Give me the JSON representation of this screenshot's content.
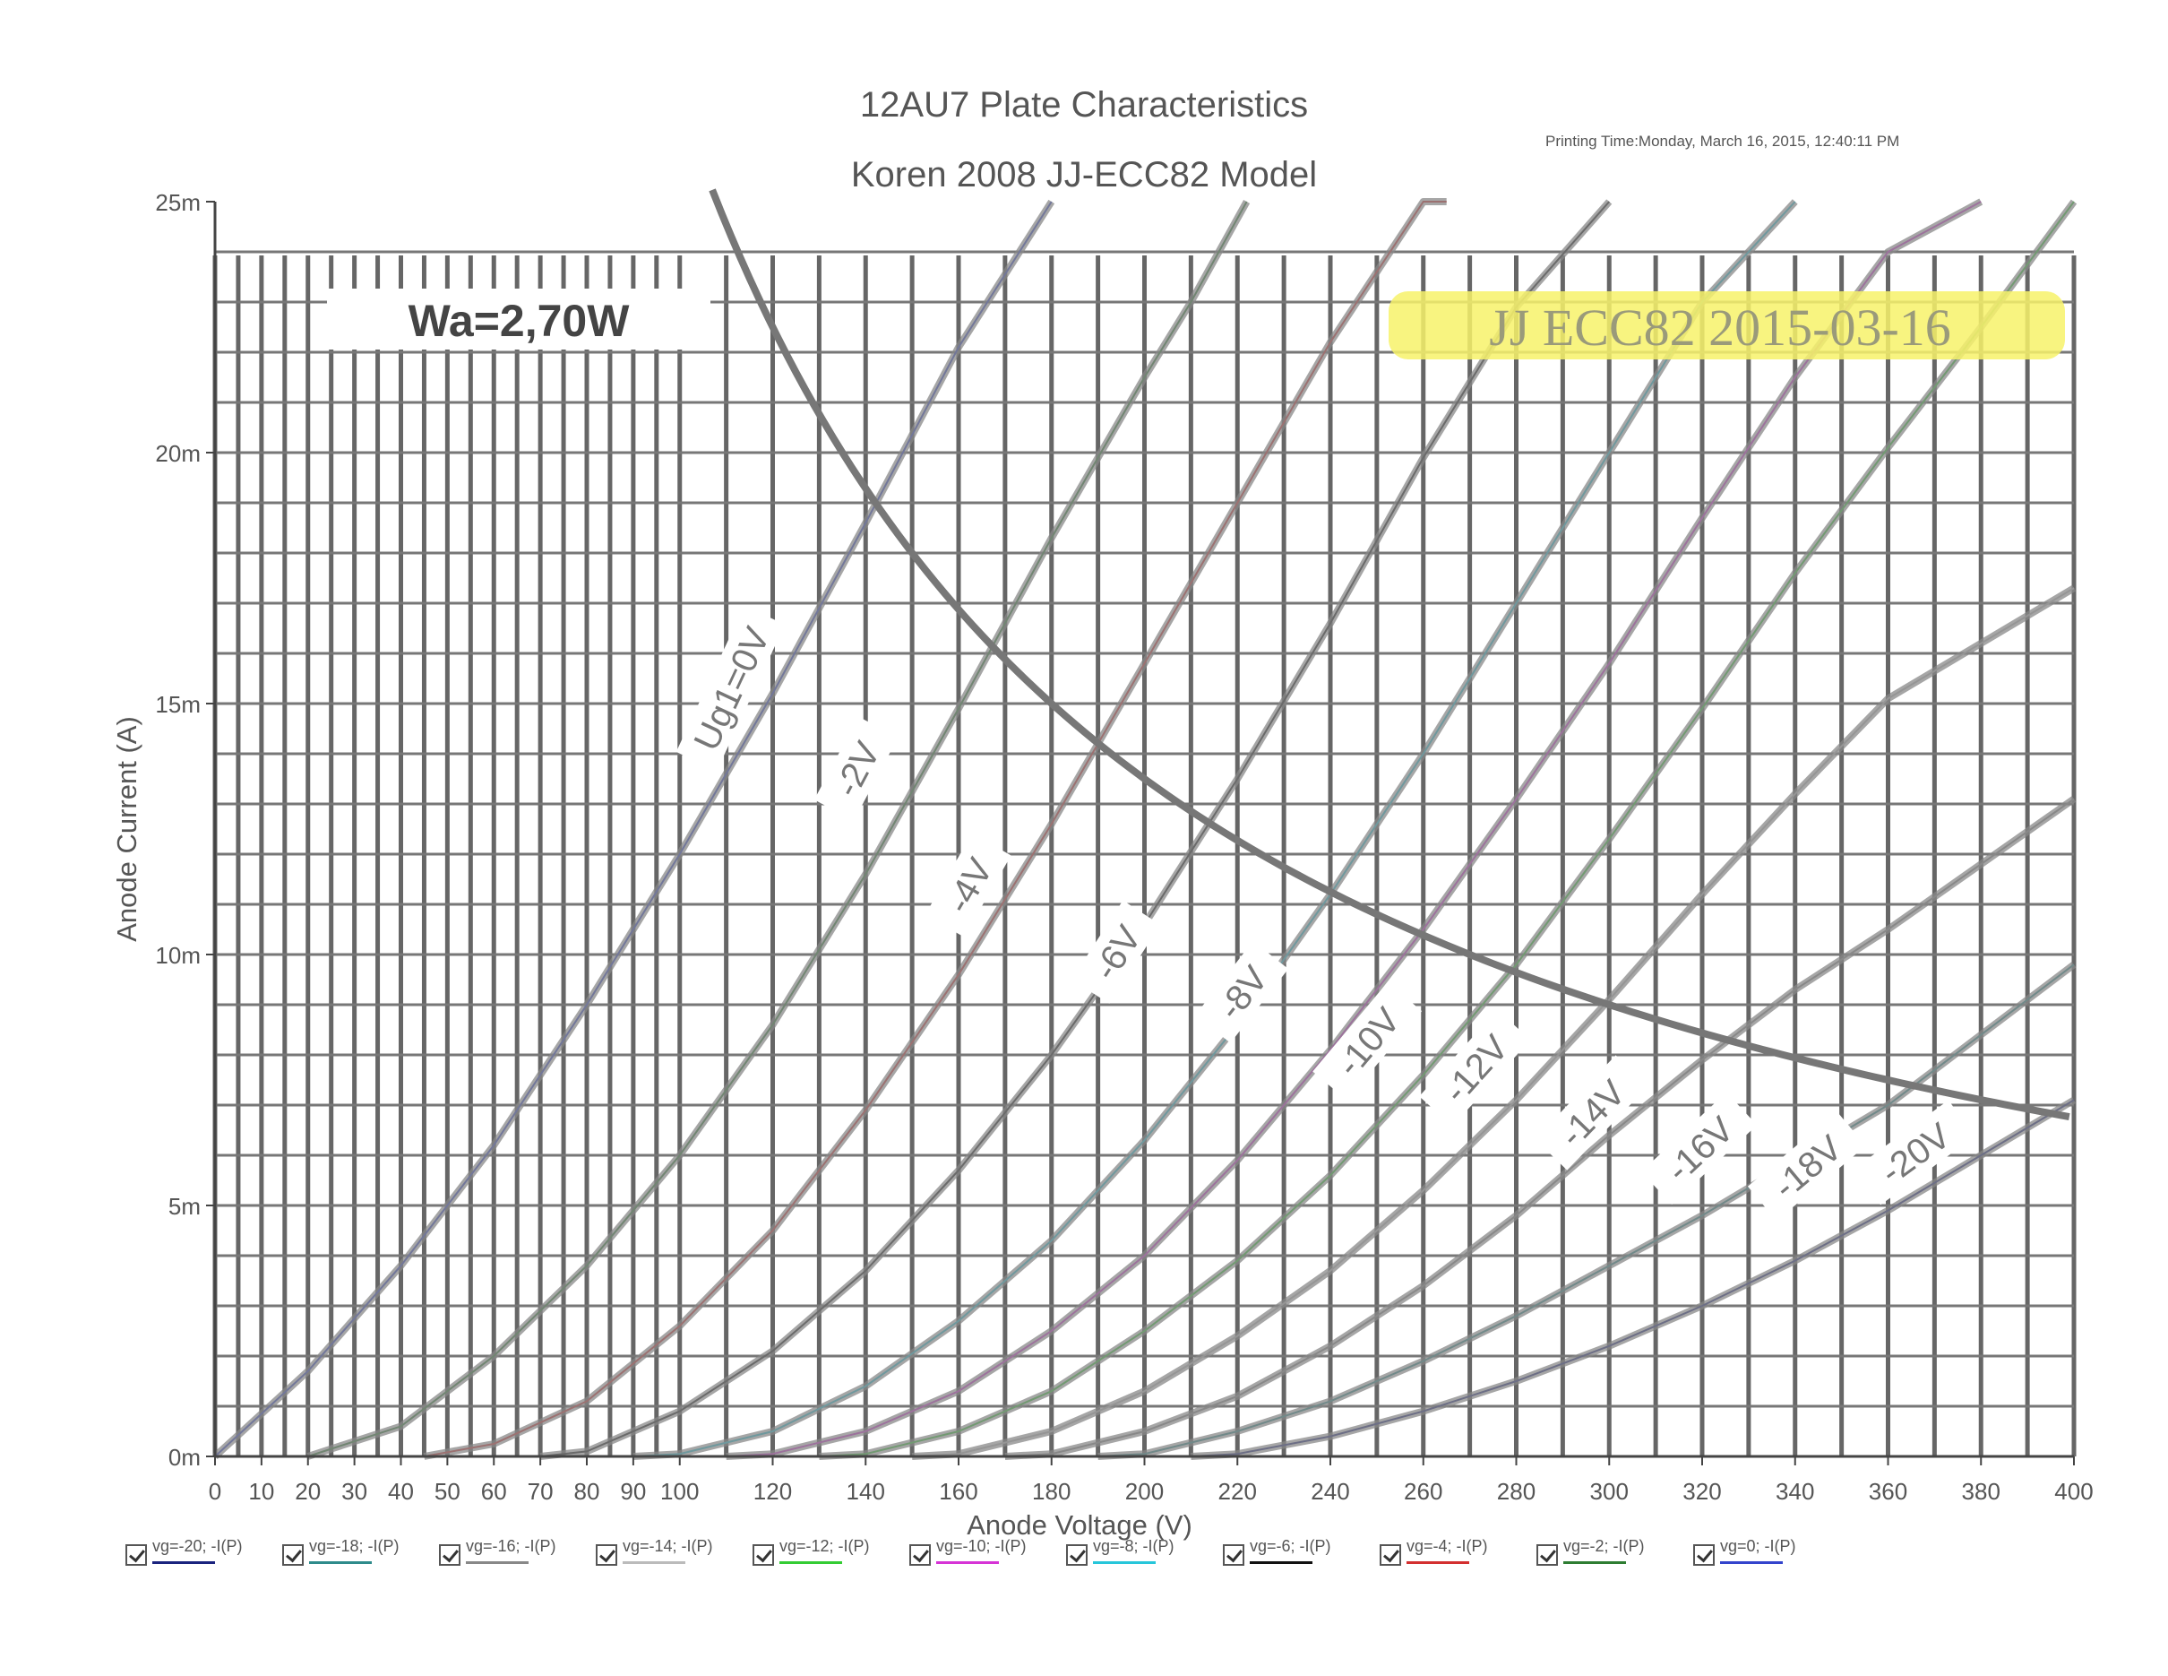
{
  "chart_data": {
    "type": "line",
    "title": "12AU7 Plate Characteristics",
    "subtitle": "Koren 2008 JJ-ECC82 Model",
    "printing_time": "Printing Time:Monday, March 16, 2015, 12:40:11 PM",
    "xlabel": "Anode Voltage (V)",
    "ylabel": "Anode Current (A)",
    "xlim": [
      0,
      400
    ],
    "ylim": [
      0,
      25
    ],
    "x_ticks": [
      "0",
      "10",
      "20",
      "30",
      "40",
      "50",
      "60",
      "70",
      "80",
      "90",
      "100",
      "120",
      "140",
      "160",
      "180",
      "200",
      "220",
      "240",
      "260",
      "280",
      "300",
      "320",
      "340",
      "360",
      "380",
      "400"
    ],
    "x_tick_values": [
      0,
      10,
      20,
      30,
      40,
      50,
      60,
      70,
      80,
      90,
      100,
      120,
      140,
      160,
      180,
      200,
      220,
      240,
      260,
      280,
      300,
      320,
      340,
      360,
      380,
      400
    ],
    "y_ticks": [
      "0m",
      "5m",
      "10m",
      "15m",
      "20m",
      "25m"
    ],
    "y_tick_values": [
      0,
      5,
      10,
      15,
      20,
      25
    ],
    "grid": true,
    "power_label": "Wa=2,70W",
    "power_watts": 2.7,
    "stamp": "JJ ECC82 2015-03-16",
    "curve_labels": [
      "Ug1=0V",
      "-2V",
      "-4V",
      "-6V",
      "-8V",
      "-10V",
      "-12V",
      "-14V",
      "-16V",
      "-18V",
      "-20V"
    ],
    "series": [
      {
        "name": "vg=0; -I(P)",
        "color": "#3344cc",
        "x": [
          0,
          20,
          40,
          60,
          80,
          100,
          120,
          140,
          160,
          180
        ],
        "y": [
          0,
          1.7,
          3.8,
          6.2,
          9.0,
          12.0,
          15.2,
          18.6,
          22.1,
          25.0
        ]
      },
      {
        "name": "vg=-2; -I(P)",
        "color": "#2e7d32",
        "x": [
          20,
          40,
          60,
          80,
          100,
          120,
          140,
          160,
          180,
          200,
          210,
          222
        ],
        "y": [
          0,
          0.6,
          2.0,
          3.8,
          6.0,
          8.6,
          11.6,
          14.9,
          18.3,
          21.5,
          23.0,
          25.0
        ]
      },
      {
        "name": "vg=-4; -I(P)",
        "color": "#d32f2f",
        "x": [
          45,
          60,
          80,
          100,
          120,
          140,
          160,
          180,
          200,
          220,
          240,
          260,
          265
        ],
        "y": [
          0,
          0.25,
          1.1,
          2.6,
          4.5,
          6.9,
          9.6,
          12.6,
          15.8,
          19.0,
          22.2,
          25.0,
          25.0
        ]
      },
      {
        "name": "vg=-6; -I(P)",
        "color": "#111111",
        "x": [
          70,
          80,
          100,
          120,
          140,
          160,
          180,
          200,
          220,
          240,
          260,
          280,
          300
        ],
        "y": [
          0,
          0.1,
          0.9,
          2.1,
          3.7,
          5.7,
          8.0,
          10.6,
          13.5,
          16.6,
          19.9,
          22.9,
          25.0
        ]
      },
      {
        "name": "vg=-8; -I(P)",
        "color": "#26c6da",
        "x": [
          90,
          100,
          120,
          140,
          160,
          180,
          200,
          220,
          240,
          260,
          280,
          300,
          320,
          340
        ],
        "y": [
          0,
          0.05,
          0.5,
          1.4,
          2.7,
          4.3,
          6.3,
          8.6,
          11.2,
          14.0,
          17.0,
          20.0,
          23.0,
          25.0
        ]
      },
      {
        "name": "vg=-10; -I(P)",
        "color": "#d633d6",
        "x": [
          110,
          120,
          140,
          160,
          180,
          200,
          220,
          240,
          260,
          280,
          300,
          320,
          340,
          360,
          380
        ],
        "y": [
          0,
          0.05,
          0.5,
          1.3,
          2.5,
          4.0,
          5.9,
          8.1,
          10.5,
          13.1,
          15.8,
          18.7,
          21.5,
          24.0,
          25.0
        ]
      },
      {
        "name": "vg=-12; -I(P)",
        "color": "#33cc33",
        "x": [
          130,
          140,
          160,
          180,
          200,
          220,
          240,
          260,
          280,
          300,
          320,
          340,
          360,
          380,
          400
        ],
        "y": [
          0,
          0.05,
          0.5,
          1.3,
          2.5,
          3.9,
          5.6,
          7.6,
          9.8,
          12.3,
          14.9,
          17.6,
          20.1,
          22.5,
          25.0
        ]
      },
      {
        "name": "vg=-14; -I(P)",
        "color": "#bbbbbb",
        "x": [
          150,
          160,
          180,
          200,
          220,
          240,
          260,
          280,
          300,
          320,
          340,
          360,
          380,
          400
        ],
        "y": [
          0,
          0.05,
          0.5,
          1.3,
          2.4,
          3.7,
          5.3,
          7.1,
          9.1,
          11.2,
          13.2,
          15.1,
          16.2,
          17.3
        ]
      },
      {
        "name": "vg=-16; -I(P)",
        "color": "#888888",
        "x": [
          170,
          180,
          200,
          220,
          240,
          260,
          280,
          300,
          320,
          340,
          360,
          380,
          400
        ],
        "y": [
          0,
          0.05,
          0.5,
          1.2,
          2.2,
          3.4,
          4.8,
          6.4,
          7.9,
          9.3,
          10.5,
          11.8,
          13.1
        ]
      },
      {
        "name": "vg=-18; -I(P)",
        "color": "#2e8b8b",
        "x": [
          190,
          200,
          220,
          240,
          260,
          280,
          300,
          320,
          340,
          360,
          380,
          400
        ],
        "y": [
          0,
          0.05,
          0.5,
          1.1,
          1.9,
          2.8,
          3.8,
          4.8,
          5.9,
          7.0,
          8.4,
          9.8
        ]
      },
      {
        "name": "vg=-20; -I(P)",
        "color": "#1a237e",
        "x": [
          210,
          220,
          240,
          260,
          280,
          300,
          320,
          340,
          360,
          380,
          400
        ],
        "y": [
          0,
          0.05,
          0.4,
          0.9,
          1.5,
          2.2,
          3.0,
          3.9,
          4.9,
          6.0,
          7.1
        ]
      }
    ],
    "legend_order": [
      "vg=-20; -I(P)",
      "vg=-18; -I(P)",
      "vg=-16; -I(P)",
      "vg=-14; -I(P)",
      "vg=-12; -I(P)",
      "vg=-10; -I(P)",
      "vg=-8; -I(P)",
      "vg=-6; -I(P)",
      "vg=-4; -I(P)",
      "vg=-2; -I(P)",
      "vg=0; -I(P)"
    ],
    "legend_placement": "bottom"
  }
}
